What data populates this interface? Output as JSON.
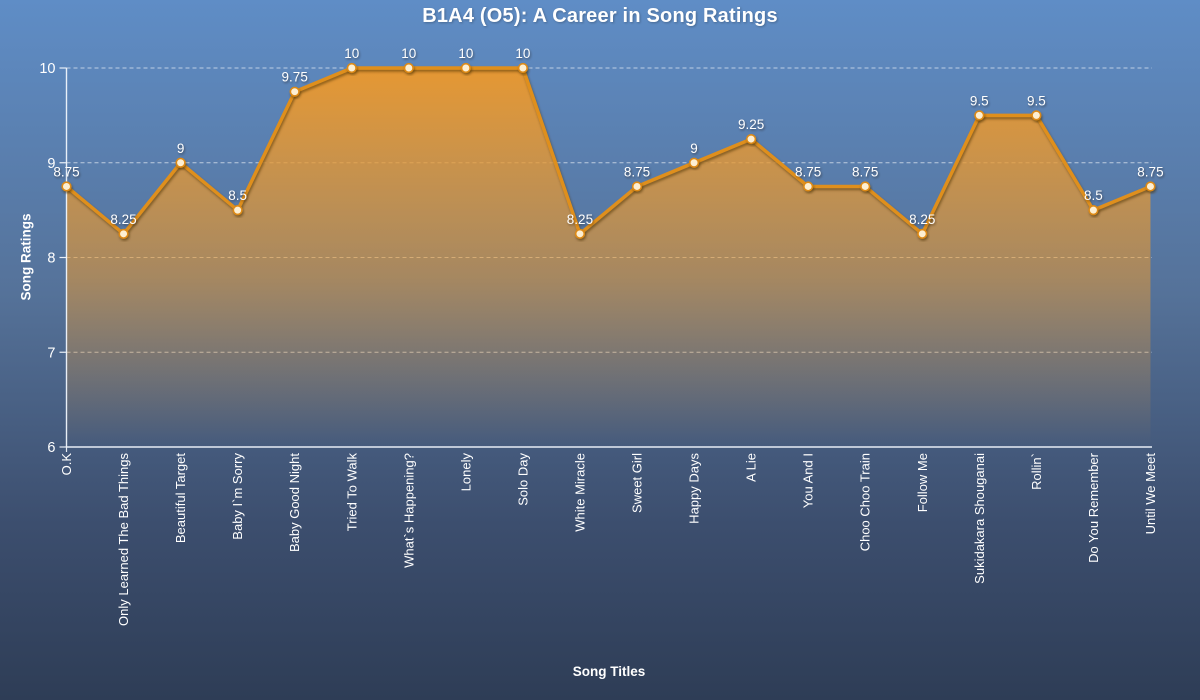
{
  "chart_data": {
    "type": "area",
    "title": "B1A4 (O5): A Career in Song Ratings",
    "xlabel": "Song Titles",
    "ylabel": "Song Ratings",
    "ylim": [
      6,
      10
    ],
    "yticks": [
      6,
      7,
      8,
      9,
      10
    ],
    "grid": "horizontal dashed white lines at 7,8,9,10; y-axis and baseline solid white",
    "legend": "none",
    "marker": "circle",
    "categories": [
      "O.K",
      "Only Learned The Bad Things",
      "Beautiful Target",
      "Baby I`m Sorry",
      "Baby Good Night",
      "Tried To Walk",
      "What`s Happening?",
      "Lonely",
      "Solo Day",
      "White Miracle",
      "Sweet Girl",
      "Happy Days",
      "A Lie",
      "You And I",
      "Choo Choo Train",
      "Follow Me",
      "Sukidakara Shouganai",
      "Rollin`",
      "Do You Remember",
      "Until We Meet"
    ],
    "values": [
      8.75,
      8.25,
      9,
      8.5,
      9.75,
      10,
      10,
      10,
      10,
      8.25,
      8.75,
      9,
      9.25,
      8.75,
      8.75,
      8.25,
      9.5,
      9.5,
      8.5,
      8.75
    ],
    "data_labels": [
      "8.75",
      "8.25",
      "9",
      "8.5",
      "9.75",
      "10",
      "10",
      "10",
      "10",
      "8.25",
      "8.75",
      "9",
      "9.25",
      "8.75",
      "8.75",
      "8.25",
      "9.5",
      "9.5",
      "8.5",
      "8.75"
    ],
    "colors": {
      "background_top": "#5F8DC6",
      "background_bottom": "#2E3D56",
      "line": "#DF8F1F",
      "area_fill": "#E89830",
      "marker_fill": "#FDEFD2",
      "marker_stroke": "#DD8A18",
      "grid": "rgba(255,255,255,0.60)",
      "axis": "rgba(240,246,252,0.95)",
      "text": "#FFFFFF"
    }
  }
}
